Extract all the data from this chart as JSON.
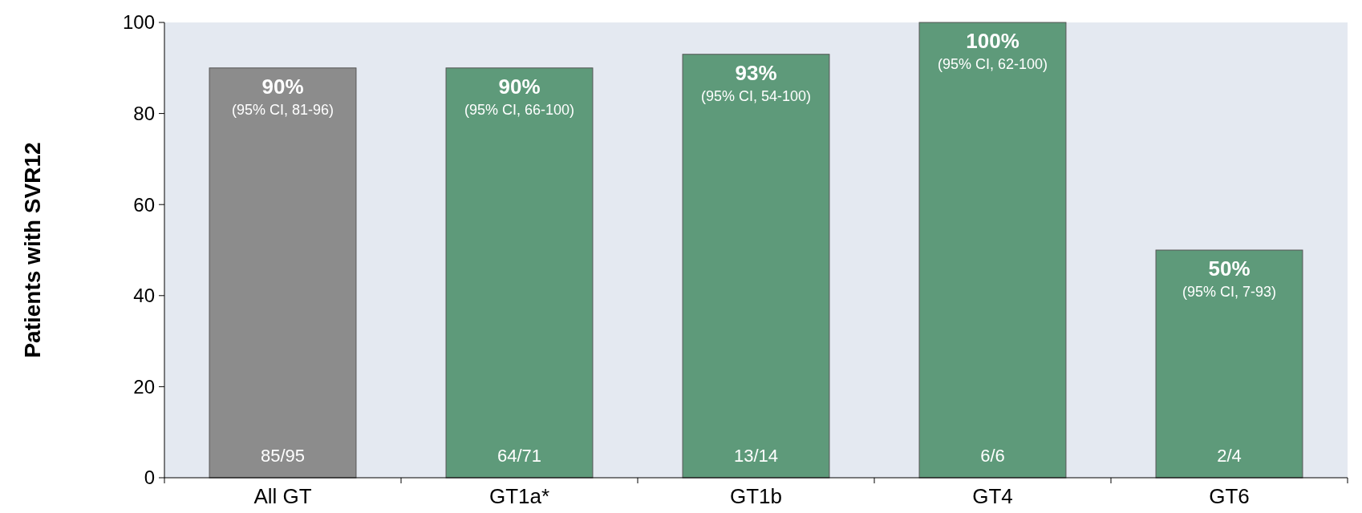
{
  "chart_data": {
    "type": "bar",
    "ylabel": "Patients with SVR12",
    "categories": [
      "All GT",
      "GT1a*",
      "GT1b",
      "GT4",
      "GT6"
    ],
    "values": [
      90,
      90,
      93,
      100,
      50
    ],
    "colors": [
      "#8c8c8c",
      "#5e9a7a",
      "#5e9a7a",
      "#5e9a7a",
      "#5e9a7a"
    ],
    "value_labels": [
      "90%",
      "90%",
      "93%",
      "100%",
      "50%"
    ],
    "ylim": [
      0,
      100
    ],
    "yticks": [
      0,
      20,
      40,
      60,
      80,
      100
    ],
    "grid": false,
    "annotations": [
      "(95% CI, 81-96)",
      "(95% CI, 66-100)",
      "(95% CI, 54-100)",
      "(95% CI, 62-100)",
      "(95% CI, 7-93)",
      "85/95",
      "64/71",
      "13/14",
      "6/6",
      "2/4"
    ]
  }
}
